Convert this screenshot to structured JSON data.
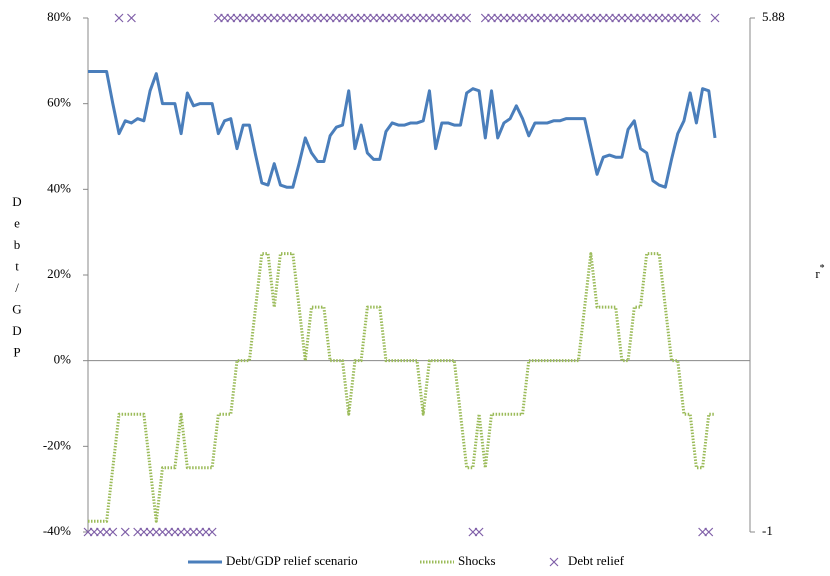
{
  "chart_data": {
    "type": "line",
    "y_label": "Debt/GDP",
    "y2_label": "r*",
    "categories": [
      null,
      null,
      null,
      null,
      null,
      null,
      null,
      null,
      null,
      null,
      null,
      null,
      null,
      null,
      null,
      null,
      null,
      null,
      null,
      null,
      null,
      null,
      null,
      null,
      null,
      null,
      null,
      null,
      null,
      null,
      null,
      null,
      null,
      null,
      null,
      null,
      null,
      null,
      null,
      null,
      null,
      null,
      null,
      null,
      null,
      null,
      null,
      null,
      null,
      null,
      null,
      null,
      null,
      null,
      null,
      null,
      null,
      null,
      null,
      null,
      null,
      null,
      null,
      null,
      null,
      null,
      null,
      null,
      null,
      null,
      null,
      null,
      null,
      null,
      null,
      null,
      null,
      null,
      null,
      null,
      null,
      null,
      null,
      null,
      null,
      null,
      null,
      null,
      null,
      null,
      null,
      null,
      null,
      null,
      null,
      null,
      null,
      null,
      null,
      null,
      null,
      null
    ],
    "ylim": [
      -40,
      80
    ],
    "yticks": [
      {
        "value": -40,
        "label": "-40%"
      },
      {
        "value": -20,
        "label": "-20%"
      },
      {
        "value": 0,
        "label": "0%"
      },
      {
        "value": 20,
        "label": "20%"
      },
      {
        "value": 40,
        "label": "40%"
      },
      {
        "value": 60,
        "label": "60%"
      },
      {
        "value": 80,
        "label": "80%"
      }
    ],
    "y2lim": [
      -1,
      5.88
    ],
    "y2ticks": [
      -1,
      5.88
    ],
    "series": [
      {
        "name": "Debt/GDP relief scenario",
        "color": "#4a7ebb",
        "style": "solid",
        "values": [
          67.5,
          67.5,
          67.5,
          67.5,
          60,
          53,
          56,
          55.5,
          56.5,
          56,
          63,
          67,
          60,
          60,
          60,
          53,
          62.5,
          59.5,
          60,
          60,
          60,
          53,
          56,
          56.5,
          49.5,
          55,
          55,
          48,
          41.5,
          41,
          46,
          41,
          40.5,
          40.5,
          46,
          52,
          48.5,
          46.5,
          46.5,
          52.5,
          54.5,
          55,
          63,
          49.5,
          55,
          48.5,
          47,
          47,
          53.5,
          55.5,
          55,
          55,
          55.5,
          55.5,
          56,
          63,
          49.5,
          55.5,
          55.5,
          55,
          55,
          62.5,
          63.5,
          63,
          52,
          63,
          52,
          55.5,
          56.5,
          59.5,
          56.5,
          52.5,
          55.5,
          55.5,
          55.5,
          56,
          56,
          56.5,
          56.5,
          56.5,
          56.5,
          50,
          43.5,
          47.5,
          48,
          47.5,
          47.5,
          54,
          56,
          49.5,
          48.5,
          42,
          41,
          40.5,
          47,
          53,
          56,
          62.5,
          55.5,
          63.5,
          63,
          52
        ]
      },
      {
        "name": "Shocks",
        "color": "#9bbb59",
        "style": "dotted",
        "values": [
          -37.5,
          -37.5,
          -37.5,
          -37.5,
          -25,
          -12.5,
          -12.5,
          -12.5,
          -12.5,
          -12.5,
          -25,
          -37.5,
          -25,
          -25,
          -25,
          -12.5,
          -25,
          -25,
          -25,
          -25,
          -25,
          -12.5,
          -12.5,
          -12.5,
          0,
          0,
          0,
          12.5,
          25,
          25,
          12.5,
          25,
          25,
          25,
          12.5,
          0,
          12.5,
          12.5,
          12.5,
          0,
          0,
          0,
          -12.5,
          0,
          0,
          12.5,
          12.5,
          12.5,
          0,
          0,
          0,
          0,
          0,
          0,
          -12.5,
          0,
          0,
          0,
          0,
          0,
          -12.5,
          -25,
          -25,
          -12.5,
          -25,
          -12.5,
          -12.5,
          -12.5,
          -12.5,
          -12.5,
          -12.5,
          0,
          0,
          0,
          0,
          0,
          0,
          0,
          0,
          0,
          12.5,
          25,
          12.5,
          12.5,
          12.5,
          12.5,
          0,
          0,
          12.5,
          12.5,
          25,
          25,
          25,
          12.5,
          0,
          0,
          -12.5,
          -12.5,
          -25,
          -25,
          -12.5,
          -12.5
        ]
      },
      {
        "name": "Debt relief",
        "color": "#7f5fa8",
        "style": "marker",
        "axis": "y2",
        "values": [
          -1,
          -1,
          -1,
          -1,
          -1,
          5.88,
          -1,
          5.88,
          -1,
          -1,
          -1,
          -1,
          -1,
          -1,
          -1,
          -1,
          -1,
          -1,
          -1,
          -1,
          -1,
          5.88,
          5.88,
          5.88,
          5.88,
          5.88,
          5.88,
          5.88,
          5.88,
          5.88,
          5.88,
          5.88,
          5.88,
          5.88,
          5.88,
          5.88,
          5.88,
          5.88,
          5.88,
          5.88,
          5.88,
          5.88,
          5.88,
          5.88,
          5.88,
          5.88,
          5.88,
          5.88,
          5.88,
          5.88,
          5.88,
          5.88,
          5.88,
          5.88,
          5.88,
          5.88,
          5.88,
          5.88,
          5.88,
          5.88,
          5.88,
          5.88,
          -1,
          -1,
          5.88,
          5.88,
          5.88,
          5.88,
          5.88,
          5.88,
          5.88,
          5.88,
          5.88,
          5.88,
          5.88,
          5.88,
          5.88,
          5.88,
          5.88,
          5.88,
          5.88,
          5.88,
          5.88,
          5.88,
          5.88,
          5.88,
          5.88,
          5.88,
          5.88,
          5.88,
          5.88,
          5.88,
          5.88,
          5.88,
          5.88,
          5.88,
          5.88,
          5.88,
          5.88,
          -1,
          -1,
          5.88
        ]
      }
    ]
  }
}
